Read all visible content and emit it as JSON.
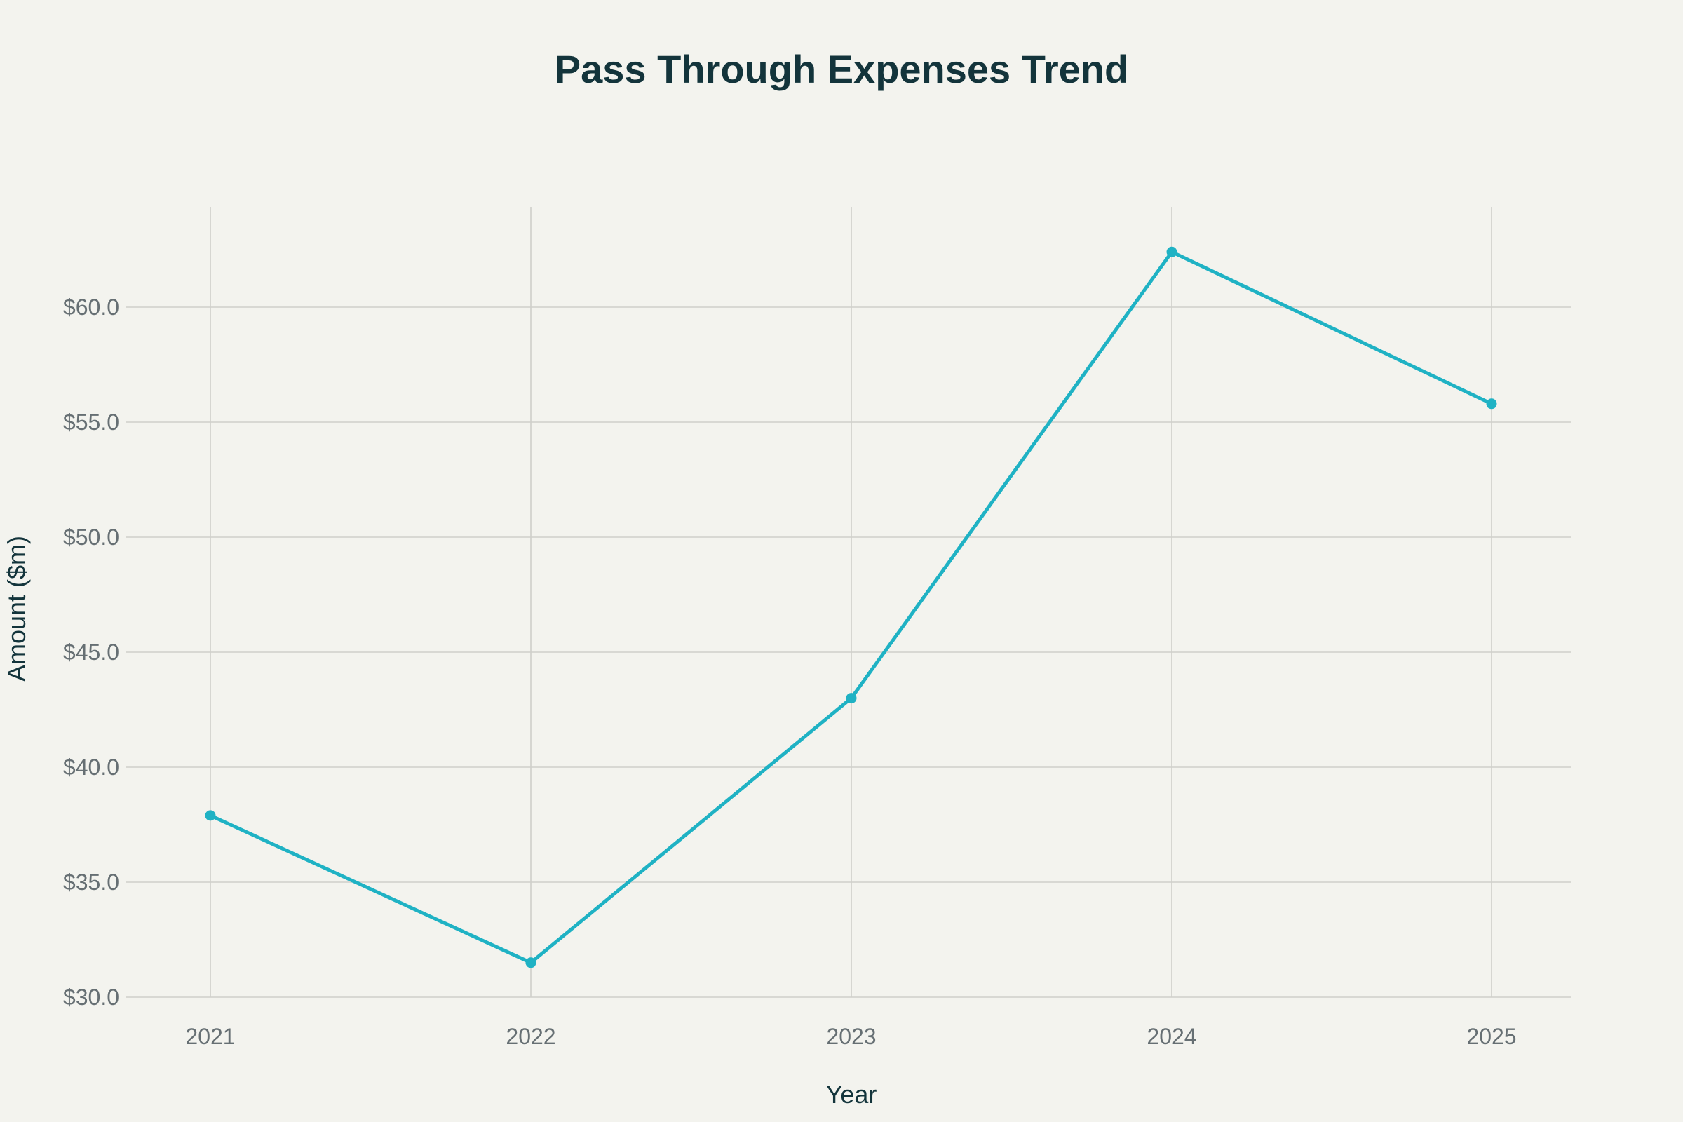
{
  "chart_data": {
    "type": "line",
    "title": "Pass Through Expenses Trend",
    "xlabel": "Year",
    "ylabel": "Amount ($m)",
    "x": [
      "2021",
      "2022",
      "2023",
      "2024",
      "2025"
    ],
    "series": [
      {
        "values": [
          37.9,
          31.5,
          43.0,
          62.4,
          55.8
        ],
        "color": "#1fb2c4"
      }
    ],
    "ylim": [
      30.0,
      60.0
    ],
    "yticks": [
      30.0,
      35.0,
      40.0,
      45.0,
      50.0,
      55.0,
      60.0
    ],
    "ytick_labels": [
      "$30.0",
      "$35.0",
      "$40.0",
      "$45.0",
      "$50.0",
      "$55.0",
      "$60.0"
    ],
    "grid": true,
    "legend": "none"
  },
  "colors": {
    "background": "#f3f3ee",
    "grid": "#cfcfca",
    "text": "#13343b",
    "tick": "#666f73"
  }
}
